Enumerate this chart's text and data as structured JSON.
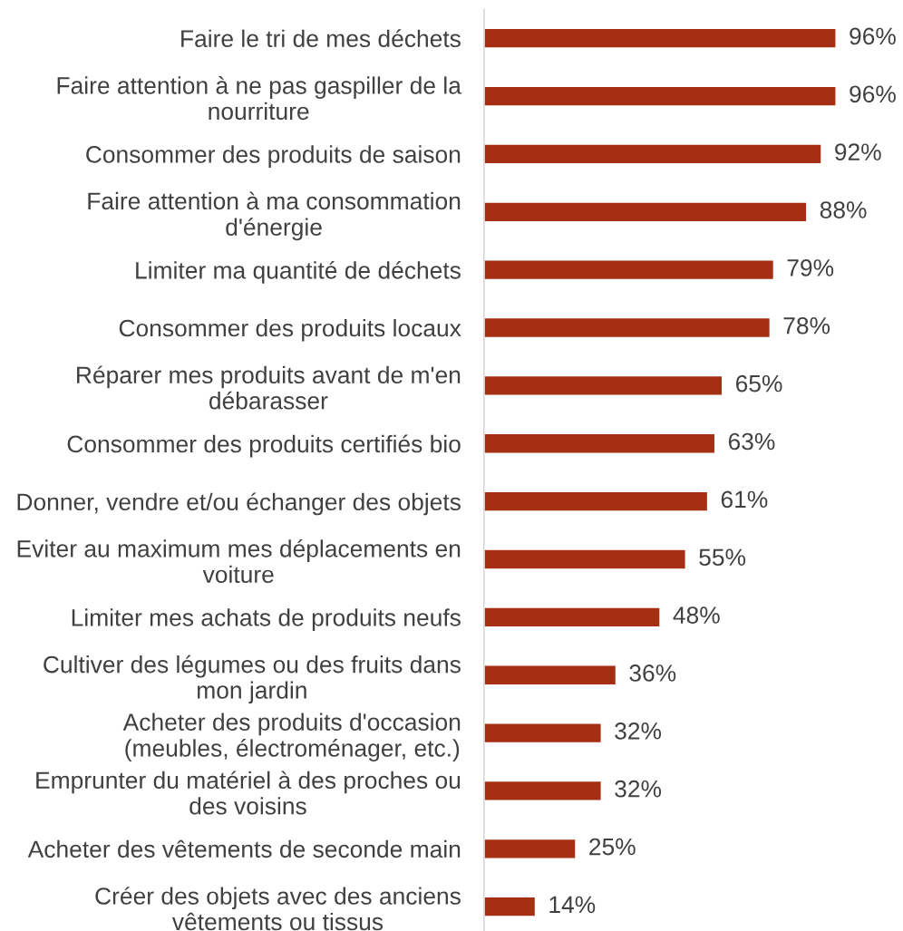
{
  "chart_data": {
    "type": "bar",
    "orientation": "horizontal",
    "tick_labels": "y",
    "categories": [
      "Faire le tri de mes déchets",
      "Faire attention à ne pas gaspiller de la\nnourriture",
      "Consommer des produits de saison",
      "Faire attention à ma consommation\nd'énergie",
      "Limiter ma quantité de déchets",
      "Consommer des produits locaux",
      "Réparer mes produits avant de m'en\ndébarasser",
      "Consommer des produits certifiés bio",
      "Donner, vendre et/ou échanger des objets",
      "Eviter au maximum mes déplacements en\nvoiture",
      "Limiter mes achats de produits neufs",
      "Cultiver des légumes ou des fruits dans\nmon jardin",
      "Acheter des produits d'occasion\n(meubles, électroménager, etc.)",
      "Emprunter du matériel à des proches ou\ndes voisins",
      "Acheter des vêtements de seconde main",
      "Créer des objets avec des anciens\nvêtements ou tissus"
    ],
    "values": [
      96,
      96,
      92,
      88,
      79,
      78,
      65,
      63,
      61,
      55,
      48,
      36,
      32,
      32,
      25,
      14
    ],
    "value_labels": [
      "96%",
      "96%",
      "92%",
      "88%",
      "79%",
      "78%",
      "65%",
      "63%",
      "61%",
      "55%",
      "48%",
      "36%",
      "32%",
      "32%",
      "25%",
      "14%"
    ],
    "color": "#a52f12"
  }
}
